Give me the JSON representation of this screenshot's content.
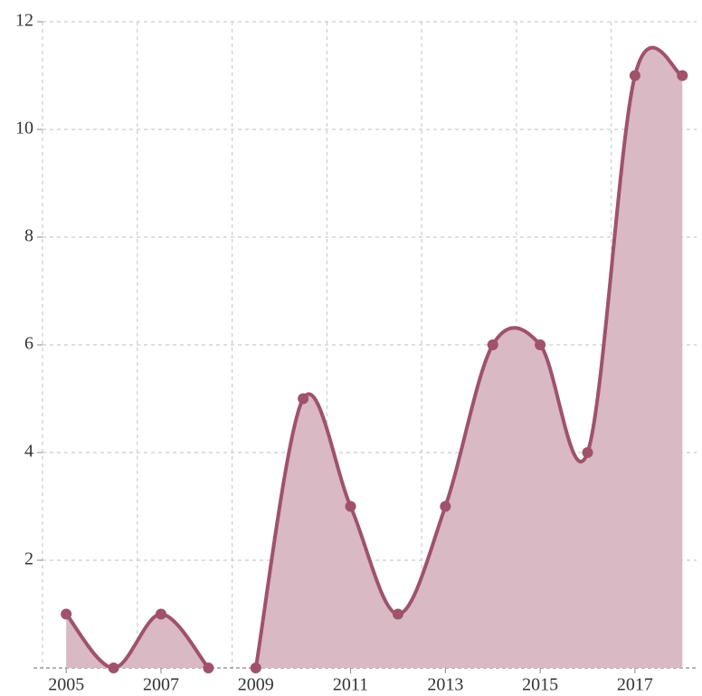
{
  "chart_data": {
    "type": "area",
    "series": [
      {
        "color": "#a0526a",
        "fill": "#d9b9c3",
        "x": [
          2005,
          2006,
          2007,
          2008
        ],
        "values": [
          1,
          0,
          1,
          0
        ]
      },
      {
        "color": "#a0526a",
        "fill": "#d9b9c3",
        "x": [
          2009,
          2010,
          2011,
          2012,
          2013,
          2014,
          2015,
          2016,
          2017,
          2018
        ],
        "values": [
          0,
          5,
          3,
          1,
          3,
          6,
          6,
          4,
          11,
          11
        ]
      }
    ],
    "xlim": [
      2004.5,
      2018.3
    ],
    "xticks": [
      2005,
      2007,
      2009,
      2011,
      2013,
      2015,
      2017
    ],
    "xgrid": [
      2004.5,
      2006.5,
      2008.5,
      2010.5,
      2012.5,
      2014.5,
      2016.5
    ],
    "ylim": [
      0,
      12
    ],
    "yticks": [
      2,
      4,
      6,
      8,
      10,
      12
    ],
    "grid": true
  }
}
